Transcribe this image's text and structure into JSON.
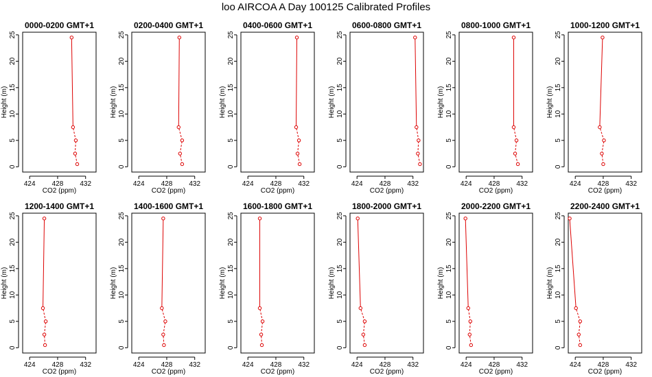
{
  "page": {
    "title": "loo AIRCOA A  Day 100125  Calibrated Profiles"
  },
  "colors": {
    "series": "#dd0000",
    "axis": "#000000"
  },
  "chart_data": [
    {
      "type": "line",
      "title": "0000-0200 GMT+1",
      "xlabel": "CO2 (ppm)",
      "ylabel": "Height (m)",
      "xlim": [
        423,
        433.5
      ],
      "ylim": [
        -1,
        25.5
      ],
      "xticks": [
        424,
        428,
        432
      ],
      "yticks": [
        0,
        5,
        10,
        15,
        20,
        25
      ],
      "x": [
        430.8,
        430.5,
        430.6,
        430.2,
        430.0
      ],
      "y": [
        0.5,
        2.5,
        5,
        7.5,
        24.5
      ],
      "line_styles": [
        "dashed",
        "dashed",
        "dashed",
        "solid"
      ]
    },
    {
      "type": "line",
      "title": "0200-0400 GMT+1",
      "xlabel": "CO2 (ppm)",
      "ylabel": "Height (m)",
      "xlim": [
        423,
        433.5
      ],
      "ylim": [
        -1,
        25.5
      ],
      "xticks": [
        424,
        428,
        432
      ],
      "yticks": [
        0,
        5,
        10,
        15,
        20,
        25
      ],
      "x": [
        430.2,
        429.9,
        430.2,
        429.7,
        429.8
      ],
      "y": [
        0.5,
        2.5,
        5,
        7.5,
        24.5
      ],
      "line_styles": [
        "dashed",
        "dashed",
        "dashed",
        "solid"
      ]
    },
    {
      "type": "line",
      "title": "0400-0600 GMT+1",
      "xlabel": "CO2 (ppm)",
      "ylabel": "Height (m)",
      "xlim": [
        423,
        433.5
      ],
      "ylim": [
        -1,
        25.5
      ],
      "xticks": [
        424,
        428,
        432
      ],
      "yticks": [
        0,
        5,
        10,
        15,
        20,
        25
      ],
      "x": [
        431.4,
        431.1,
        431.3,
        430.9,
        431.0
      ],
      "y": [
        0.5,
        2.5,
        5,
        7.5,
        24.5
      ],
      "line_styles": [
        "dashed",
        "dashed",
        "dashed",
        "solid"
      ]
    },
    {
      "type": "line",
      "title": "0600-0800 GMT+1",
      "xlabel": "CO2 (ppm)",
      "ylabel": "Height (m)",
      "xlim": [
        423,
        433.5
      ],
      "ylim": [
        -1,
        25.5
      ],
      "xticks": [
        424,
        428,
        432
      ],
      "yticks": [
        0,
        5,
        10,
        15,
        20,
        25
      ],
      "x": [
        433.0,
        432.7,
        432.8,
        432.5,
        432.3
      ],
      "y": [
        0.5,
        2.5,
        5,
        7.5,
        24.5
      ],
      "line_styles": [
        "dashed",
        "dashed",
        "dashed",
        "solid"
      ]
    },
    {
      "type": "line",
      "title": "0800-1000 GMT+1",
      "xlabel": "CO2 (ppm)",
      "ylabel": "Height (m)",
      "xlim": [
        423,
        433.5
      ],
      "ylim": [
        -1,
        25.5
      ],
      "xticks": [
        424,
        428,
        432
      ],
      "yticks": [
        0,
        5,
        10,
        15,
        20,
        25
      ],
      "x": [
        431.4,
        431.0,
        431.2,
        430.8,
        430.8
      ],
      "y": [
        0.5,
        2.5,
        5,
        7.5,
        24.5
      ],
      "line_styles": [
        "dashed",
        "dashed",
        "dashed",
        "solid"
      ]
    },
    {
      "type": "line",
      "title": "1000-1200 GMT+1",
      "xlabel": "CO2 (ppm)",
      "ylabel": "Height (m)",
      "xlim": [
        423,
        433.5
      ],
      "ylim": [
        -1,
        25.5
      ],
      "xticks": [
        424,
        428,
        432
      ],
      "yticks": [
        0,
        5,
        10,
        15,
        20,
        25
      ],
      "x": [
        428.0,
        427.8,
        428.1,
        427.5,
        427.9
      ],
      "y": [
        0.5,
        2.5,
        5,
        7.5,
        24.5
      ],
      "line_styles": [
        "dashed",
        "dashed",
        "dashed",
        "solid"
      ]
    },
    {
      "type": "line",
      "title": "1200-1400 GMT+1",
      "xlabel": "CO2 (ppm)",
      "ylabel": "Height (m)",
      "xlim": [
        423,
        433.5
      ],
      "ylim": [
        -1,
        25.5
      ],
      "xticks": [
        424,
        428,
        432
      ],
      "yticks": [
        0,
        5,
        10,
        15,
        20,
        25
      ],
      "x": [
        426.2,
        426.1,
        426.3,
        425.9,
        426.1
      ],
      "y": [
        0.5,
        2.5,
        5,
        7.5,
        24.5
      ],
      "line_styles": [
        "dashed",
        "dashed",
        "dashed",
        "solid"
      ]
    },
    {
      "type": "line",
      "title": "1400-1600 GMT+1",
      "xlabel": "CO2 (ppm)",
      "ylabel": "Height (m)",
      "xlim": [
        423,
        433.5
      ],
      "ylim": [
        -1,
        25.5
      ],
      "xticks": [
        424,
        428,
        432
      ],
      "yticks": [
        0,
        5,
        10,
        15,
        20,
        25
      ],
      "x": [
        427.6,
        427.5,
        427.8,
        427.3,
        427.5
      ],
      "y": [
        0.5,
        2.5,
        5,
        7.5,
        24.5
      ],
      "line_styles": [
        "dashed",
        "dashed",
        "dashed",
        "solid"
      ]
    },
    {
      "type": "line",
      "title": "1600-1800 GMT+1",
      "xlabel": "CO2 (ppm)",
      "ylabel": "Height (m)",
      "xlim": [
        423,
        433.5
      ],
      "ylim": [
        -1,
        25.5
      ],
      "xticks": [
        424,
        428,
        432
      ],
      "yticks": [
        0,
        5,
        10,
        15,
        20,
        25
      ],
      "x": [
        426.0,
        425.9,
        426.1,
        425.7,
        425.7
      ],
      "y": [
        0.5,
        2.5,
        5,
        7.5,
        24.5
      ],
      "line_styles": [
        "dashed",
        "dashed",
        "dashed",
        "solid"
      ]
    },
    {
      "type": "line",
      "title": "1800-2000 GMT+1",
      "xlabel": "CO2 (ppm)",
      "ylabel": "Height (m)",
      "xlim": [
        423,
        433.5
      ],
      "ylim": [
        -1,
        25.5
      ],
      "xticks": [
        424,
        428,
        432
      ],
      "yticks": [
        0,
        5,
        10,
        15,
        20,
        25
      ],
      "x": [
        425.1,
        424.9,
        425.1,
        424.5,
        424.1
      ],
      "y": [
        0.5,
        2.5,
        5,
        7.5,
        24.5
      ],
      "line_styles": [
        "dashed",
        "dashed",
        "dashed",
        "solid"
      ]
    },
    {
      "type": "line",
      "title": "2000-2200 GMT+1",
      "xlabel": "CO2 (ppm)",
      "ylabel": "Height (m)",
      "xlim": [
        423,
        433.5
      ],
      "ylim": [
        -1,
        25.5
      ],
      "xticks": [
        424,
        428,
        432
      ],
      "yticks": [
        0,
        5,
        10,
        15,
        20,
        25
      ],
      "x": [
        424.7,
        424.5,
        424.6,
        424.3,
        423.9
      ],
      "y": [
        0.5,
        2.5,
        5,
        7.5,
        24.5
      ],
      "line_styles": [
        "dashed",
        "dashed",
        "dashed",
        "solid"
      ]
    },
    {
      "type": "line",
      "title": "2200-2400 GMT+1",
      "xlabel": "CO2 (ppm)",
      "ylabel": "Height (m)",
      "xlim": [
        423,
        433.5
      ],
      "ylim": [
        -1,
        25.5
      ],
      "xticks": [
        424,
        428,
        432
      ],
      "yticks": [
        0,
        5,
        10,
        15,
        20,
        25
      ],
      "x": [
        424.7,
        424.5,
        424.7,
        424.1,
        423.2
      ],
      "y": [
        0.5,
        2.5,
        5,
        7.5,
        24.5
      ],
      "line_styles": [
        "dashed",
        "dashed",
        "dashed",
        "solid"
      ]
    }
  ]
}
